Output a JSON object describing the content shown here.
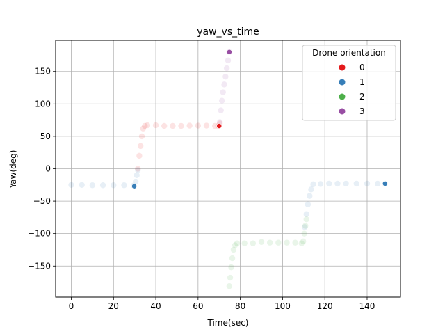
{
  "chart_data": {
    "type": "scatter",
    "title": "yaw_vs_time",
    "xlabel": "Time(sec)",
    "ylabel": "Yaw(deg)",
    "xlim": [
      -7.4,
      155.8
    ],
    "ylim": [
      -198,
      198
    ],
    "xticks": [
      0,
      20,
      40,
      60,
      80,
      100,
      120,
      140
    ],
    "yticks": [
      -150,
      -100,
      -50,
      0,
      50,
      100,
      150
    ],
    "xtick_labels": [
      "0",
      "20",
      "40",
      "60",
      "80",
      "100",
      "120",
      "140"
    ],
    "ytick_labels": [
      "−150",
      "−100",
      "−50",
      "0",
      "50",
      "100",
      "150"
    ],
    "grid": true,
    "legend_title": "Drone orientation",
    "legend_placement": "upper-right",
    "series": [
      {
        "name": "0",
        "color": "#e41a1c",
        "points": [
          [
            31.5,
            0
          ],
          [
            32.2,
            20
          ],
          [
            32.8,
            35
          ],
          [
            33.4,
            50
          ],
          [
            34.0,
            62
          ],
          [
            34.8,
            66
          ],
          [
            36,
            67
          ],
          [
            40,
            67
          ],
          [
            44,
            66
          ],
          [
            48,
            66
          ],
          [
            52,
            66
          ],
          [
            56,
            66.5
          ],
          [
            60,
            66.5
          ],
          [
            64,
            66.5
          ],
          [
            68,
            66
          ],
          [
            69.5,
            66
          ],
          [
            70.3,
            70
          ]
        ]
      },
      {
        "name": "1",
        "color": "#377eb8",
        "points": [
          [
            0,
            -25
          ],
          [
            5,
            -25
          ],
          [
            10,
            -25.5
          ],
          [
            15,
            -25.5
          ],
          [
            20,
            -25.5
          ],
          [
            25,
            -25.5
          ],
          [
            29.5,
            -26
          ],
          [
            30.5,
            -20
          ],
          [
            31.0,
            -10
          ],
          [
            31.5,
            -2
          ],
          [
            110.5,
            -90
          ],
          [
            111.3,
            -70
          ],
          [
            112.0,
            -55
          ],
          [
            112.8,
            -42
          ],
          [
            113.5,
            -32
          ],
          [
            114.5,
            -24
          ],
          [
            118,
            -23.5
          ],
          [
            122,
            -23
          ],
          [
            126,
            -23
          ],
          [
            130,
            -23
          ],
          [
            135,
            -23
          ],
          [
            140,
            -23
          ],
          [
            145,
            -23
          ],
          [
            148.5,
            -23
          ]
        ]
      },
      {
        "name": "2",
        "color": "#4daf4a",
        "points": [
          [
            74.8,
            -181
          ],
          [
            75.2,
            -168
          ],
          [
            75.7,
            -152
          ],
          [
            76.2,
            -138
          ],
          [
            76.8,
            -125
          ],
          [
            77.5,
            -118
          ],
          [
            78.5,
            -115
          ],
          [
            82,
            -115
          ],
          [
            86,
            -115
          ],
          [
            90,
            -113
          ],
          [
            94,
            -114
          ],
          [
            98,
            -114
          ],
          [
            102,
            -114
          ],
          [
            106,
            -114
          ],
          [
            109,
            -115
          ],
          [
            109.8,
            -112
          ],
          [
            110.3,
            -100
          ],
          [
            110.8,
            -88
          ],
          [
            111.3,
            -78
          ]
        ]
      },
      {
        "name": "3",
        "color": "#984ea3",
        "points": [
          [
            70.3,
            72
          ],
          [
            70.8,
            90
          ],
          [
            71.3,
            105
          ],
          [
            71.8,
            118
          ],
          [
            72.4,
            130
          ],
          [
            73.0,
            142
          ],
          [
            73.6,
            155
          ],
          [
            74.2,
            167
          ],
          [
            74.8,
            180
          ]
        ]
      }
    ],
    "highlighted_points": [
      {
        "series": "3",
        "x": 74.8,
        "y": 180
      },
      {
        "series": "1",
        "x": 148.5,
        "y": -23
      },
      {
        "series": "1",
        "x": 29.8,
        "y": -27
      },
      {
        "series": "0",
        "x": 70.0,
        "y": 66
      }
    ]
  }
}
